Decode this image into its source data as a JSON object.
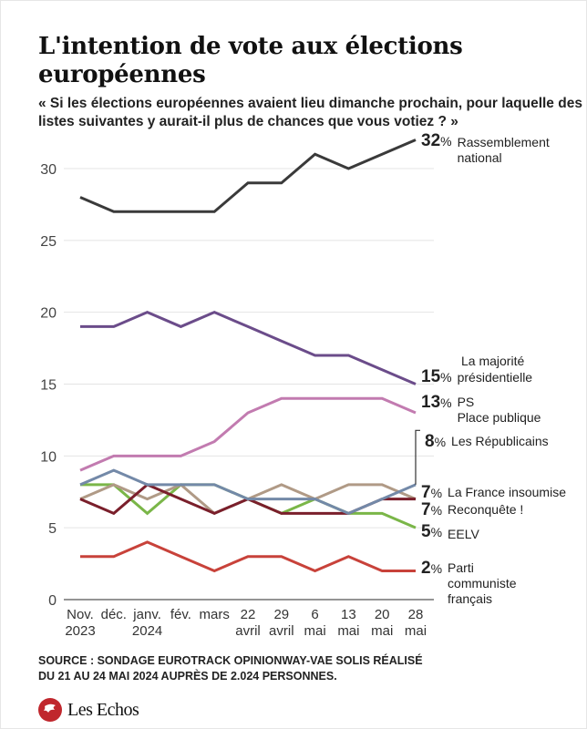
{
  "header": {
    "title": "L'intention de vote aux élections européennes",
    "subtitle": "« Si les élections européennes avaient lieu dimanche prochain, pour laquelle des listes suivantes y aurait-il plus de chances que vous votiez ? »"
  },
  "chart_data": {
    "type": "line",
    "title": "L'intention de vote aux élections européennes",
    "xlabel": "",
    "ylabel": "",
    "ylim": [
      0,
      32
    ],
    "yticks": [
      0,
      5,
      10,
      15,
      20,
      25,
      30
    ],
    "grid": true,
    "legend": "right (end-of-line labels)",
    "categories": [
      [
        "Nov.",
        "2023"
      ],
      [
        "déc.",
        ""
      ],
      [
        "janv.",
        "2024"
      ],
      [
        "fév.",
        ""
      ],
      [
        "mars",
        ""
      ],
      [
        "22",
        "avril"
      ],
      [
        "29",
        "avril"
      ],
      [
        "6",
        "mai"
      ],
      [
        "13",
        "mai"
      ],
      [
        "20",
        "mai"
      ],
      [
        "28",
        "mai"
      ]
    ],
    "series": [
      {
        "name": "Rassemblement national",
        "label": [
          "Rassemblement",
          "national"
        ],
        "color": "#3a3a3a",
        "values": [
          28,
          27,
          27,
          27,
          27,
          29,
          29,
          31,
          30,
          31,
          32
        ],
        "end_label": "32"
      },
      {
        "name": "La majorité présidentielle",
        "label": [
          "La majorité",
          "présidentielle"
        ],
        "color": "#6b4c8a",
        "values": [
          19,
          19,
          20,
          19,
          20,
          19,
          18,
          17,
          17,
          16,
          15
        ],
        "end_label": "15"
      },
      {
        "name": "PS Place publique",
        "label": [
          "PS",
          "Place publique"
        ],
        "color": "#c27bb0",
        "values": [
          9,
          10,
          10,
          10,
          11,
          13,
          14,
          14,
          14,
          14,
          13
        ],
        "end_label": "13"
      },
      {
        "name": "Les Républicains",
        "label": [
          "Les Républicains"
        ],
        "color": "#7389a8",
        "values": [
          8,
          9,
          8,
          8,
          8,
          7,
          7,
          7,
          6,
          7,
          8
        ],
        "end_label": "8"
      },
      {
        "name": "La France insoumise",
        "label": [
          "La France insoumise"
        ],
        "color": "#7a1f2b",
        "values": [
          7,
          6,
          8,
          7,
          6,
          7,
          6,
          6,
          6,
          7,
          7
        ],
        "end_label": "7"
      },
      {
        "name": "Reconquête !",
        "label": [
          "Reconquête !"
        ],
        "color": "#b09a86",
        "values": [
          7,
          8,
          7,
          8,
          6,
          7,
          8,
          7,
          8,
          8,
          7
        ],
        "end_label": "7"
      },
      {
        "name": "EELV",
        "label": [
          "EELV"
        ],
        "color": "#7ab648",
        "values": [
          8,
          8,
          6,
          8,
          8,
          7,
          6,
          7,
          6,
          6,
          5
        ],
        "end_label": "5"
      },
      {
        "name": "Parti communiste français",
        "label": [
          "Parti",
          "communiste",
          "français"
        ],
        "color": "#c8423a",
        "values": [
          3,
          3,
          4,
          3,
          2,
          3,
          3,
          2,
          3,
          2,
          2
        ],
        "end_label": "2"
      }
    ],
    "percent_sign": "%"
  },
  "footer": {
    "source_line1": "SOURCE : SONDAGE EUROTRACK OPINIONWAY-VAE SOLIS RÉALISÉ",
    "source_line2": "DU  21 AU 24 MAI 2024 AUPRÈS DE 2.024 PERSONNES.",
    "logo_text": "Les Echos",
    "logo_color": "#c0272d"
  }
}
